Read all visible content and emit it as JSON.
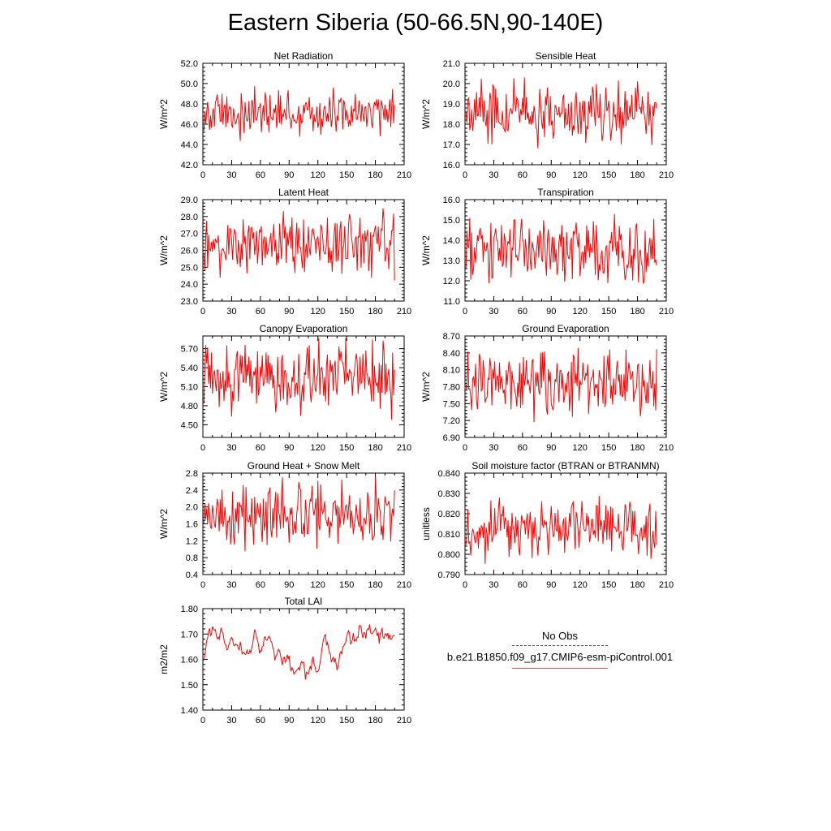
{
  "title": "Eastern Siberia (50-66.5N,90-140E)",
  "legend": {
    "obs_label": "No Obs",
    "model_label": "b.e21.B1850.f09_g17.CMIP6-esm-piControl.001",
    "obs_color": "#555566",
    "model_color": "#ff0000"
  },
  "chart_data": [
    {
      "type": "line",
      "title": "Net Radiation",
      "xlabel": "",
      "ylabel": "W/m^2",
      "xlim": [
        0,
        210
      ],
      "ylim": [
        42.0,
        52.0
      ],
      "yticks": [
        42.0,
        44.0,
        46.0,
        48.0,
        50.0,
        52.0
      ],
      "ydec": 1,
      "ymid": 47.0,
      "yamp": 1.1,
      "color": "#ff0000",
      "grid": false
    },
    {
      "type": "line",
      "title": "Sensible Heat",
      "xlabel": "",
      "ylabel": "W/m^2",
      "xlim": [
        0,
        210
      ],
      "ylim": [
        16.0,
        21.0
      ],
      "yticks": [
        16.0,
        17.0,
        18.0,
        19.0,
        20.0,
        21.0
      ],
      "ydec": 1,
      "ymid": 18.6,
      "yamp": 0.75,
      "color": "#ff0000",
      "grid": false
    },
    {
      "type": "line",
      "title": "Latent Heat",
      "xlabel": "",
      "ylabel": "W/m^2",
      "xlim": [
        0,
        210
      ],
      "ylim": [
        23.0,
        29.0
      ],
      "yticks": [
        23.0,
        24.0,
        25.0,
        26.0,
        27.0,
        28.0,
        29.0
      ],
      "ydec": 1,
      "ymid": 26.3,
      "yamp": 0.9,
      "color": "#ff0000",
      "grid": false
    },
    {
      "type": "line",
      "title": "Transpiration",
      "xlabel": "",
      "ylabel": "W/m^2",
      "xlim": [
        0,
        210
      ],
      "ylim": [
        11.0,
        16.0
      ],
      "yticks": [
        11.0,
        12.0,
        13.0,
        14.0,
        15.0,
        16.0
      ],
      "ydec": 1,
      "ymid": 13.4,
      "yamp": 0.75,
      "color": "#ff0000",
      "grid": false
    },
    {
      "type": "line",
      "title": "Canopy Evaporation",
      "xlabel": "",
      "ylabel": "W/m^2",
      "xlim": [
        0,
        210
      ],
      "ylim": [
        4.3,
        5.9
      ],
      "yticks": [
        4.5,
        4.8,
        5.1,
        5.4,
        5.7
      ],
      "ydec": 2,
      "ymid": 5.22,
      "yamp": 0.25,
      "color": "#ff0000",
      "grid": false
    },
    {
      "type": "line",
      "title": "Ground Evaporation",
      "xlabel": "",
      "ylabel": "W/m^2",
      "xlim": [
        0,
        210
      ],
      "ylim": [
        6.9,
        8.7
      ],
      "yticks": [
        6.9,
        7.2,
        7.5,
        7.8,
        8.1,
        8.4,
        8.7
      ],
      "ydec": 2,
      "ymid": 7.85,
      "yamp": 0.3,
      "color": "#ff0000",
      "grid": false
    },
    {
      "type": "line",
      "title": "Ground Heat + Snow Melt",
      "xlabel": "",
      "ylabel": "W/m^2",
      "xlim": [
        0,
        210
      ],
      "ylim": [
        0.4,
        2.8
      ],
      "yticks": [
        0.4,
        0.8,
        1.2,
        1.6,
        2.0,
        2.4,
        2.8
      ],
      "ydec": 1,
      "ymid": 1.82,
      "yamp": 0.38,
      "color": "#ff0000",
      "grid": false
    },
    {
      "type": "line",
      "title": "Soil moisture factor (BTRAN or BTRANMN)",
      "xlabel": "",
      "ylabel": "unitless",
      "xlim": [
        0,
        210
      ],
      "ylim": [
        0.79,
        0.84
      ],
      "yticks": [
        0.79,
        0.8,
        0.81,
        0.82,
        0.83,
        0.84
      ],
      "ydec": 3,
      "ymid": 0.812,
      "yamp": 0.007,
      "color": "#ff0000",
      "grid": false
    },
    {
      "type": "line",
      "title": "Total LAI",
      "xlabel": "",
      "ylabel": "m2/m2",
      "xlim": [
        0,
        210
      ],
      "ylim": [
        1.4,
        1.8
      ],
      "yticks": [
        1.4,
        1.5,
        1.6,
        1.7,
        1.8
      ],
      "ydec": 2,
      "ymid": 1.62,
      "yamp": 0.05,
      "smooth": true,
      "color": "#ff0000",
      "grid": false
    }
  ],
  "xticks": [
    0,
    30,
    60,
    90,
    120,
    150,
    180,
    210
  ],
  "n_years": 200
}
